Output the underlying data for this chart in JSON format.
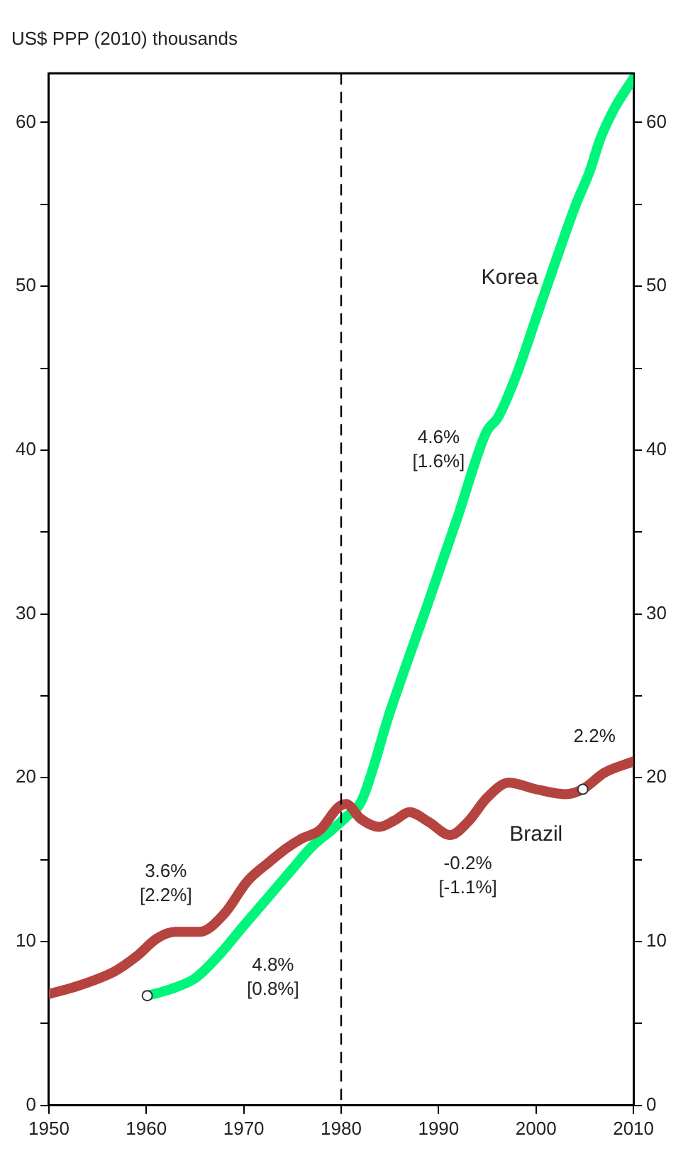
{
  "chart_data": {
    "type": "line",
    "ylabel": "US$ PPP (2010) thousands",
    "xlim": [
      1950,
      2010
    ],
    "xticks": [
      1950,
      1960,
      1970,
      1980,
      1990,
      2000,
      2010
    ],
    "ylim": [
      0,
      63
    ],
    "yticks": [
      0,
      {
        "value": 5,
        "label": null
      },
      10,
      {
        "value": 15,
        "label": null
      },
      20,
      {
        "value": 25,
        "label": null
      },
      30,
      {
        "value": 35,
        "label": null
      },
      40,
      {
        "value": 45,
        "label": null
      },
      50,
      {
        "value": 55,
        "label": null
      },
      60
    ],
    "y2lim": [
      0,
      63
    ],
    "y2ticks": [
      0,
      {
        "value": 5,
        "label": null
      },
      10,
      {
        "value": 15,
        "label": null
      },
      20,
      {
        "value": 25,
        "label": null
      },
      30,
      {
        "value": 35,
        "label": null
      },
      40,
      {
        "value": 45,
        "label": null
      },
      50,
      {
        "value": 55,
        "label": null
      },
      60
    ],
    "grid": false,
    "legend": false,
    "line_style": "solid",
    "marker": "none",
    "series": [
      {
        "name": "Brazil",
        "color": "#b5433f",
        "x": [
          1950,
          1953,
          1956.8,
          1959,
          1961.1,
          1963,
          1965.5,
          1968,
          1970.4,
          1972.5,
          1974.4,
          1976,
          1977.8,
          1979.7,
          1980.5,
          1982,
          1983.9,
          1985.5,
          1987,
          1989,
          1991.2,
          1993,
          1995,
          1997.2,
          2000,
          2003,
          2004.8,
          2007,
          2010
        ],
        "values": [
          6.8,
          7.3,
          8.2,
          9.1,
          10.2,
          10.6,
          10.6,
          11.7,
          13.7,
          14.8,
          15.7,
          16.3,
          16.8,
          18.2,
          18.4,
          17.5,
          17.0,
          17.4,
          17.9,
          17.3,
          16.5,
          17.3,
          18.8,
          19.7,
          19.3,
          19.0,
          19.3,
          20.3,
          21.0
        ]
      },
      {
        "name": "Korea",
        "color": "#00f57a",
        "x": [
          1960.1,
          1962.5,
          1965.1,
          1967.5,
          1969.9,
          1972.5,
          1974.8,
          1977,
          1979.2,
          1980.5,
          1982.1,
          1985,
          1989,
          1992,
          1994.9,
          1996.1,
          1998,
          2000.2,
          2002,
          2004.1,
          2005.5,
          2006.6,
          2008,
          2010
        ],
        "values": [
          6.7,
          7.1,
          7.8,
          9.2,
          10.9,
          12.7,
          14.3,
          15.8,
          16.9,
          17.6,
          18.6,
          24.0,
          30.8,
          36.0,
          41.1,
          42.0,
          44.6,
          48.4,
          51.5,
          55.0,
          57.0,
          59.0,
          60.8,
          62.7
        ]
      },
      {
        "type": "scatter",
        "color": "#ffffff",
        "marker": "circle",
        "x": [
          1960.1,
          2004.8
        ],
        "values": [
          6.7,
          19.3
        ]
      }
    ],
    "ref_lines": [
      {
        "axis": "x",
        "value": 1980,
        "color": "#000000",
        "line_style": "dashed"
      }
    ],
    "annotations": [
      "3.6%\n[2.2%]",
      "4.8%\n[0.8%]",
      "4.6%\n[1.6%]",
      "-0.2%\n[-1.1%]",
      "2.2%"
    ]
  }
}
